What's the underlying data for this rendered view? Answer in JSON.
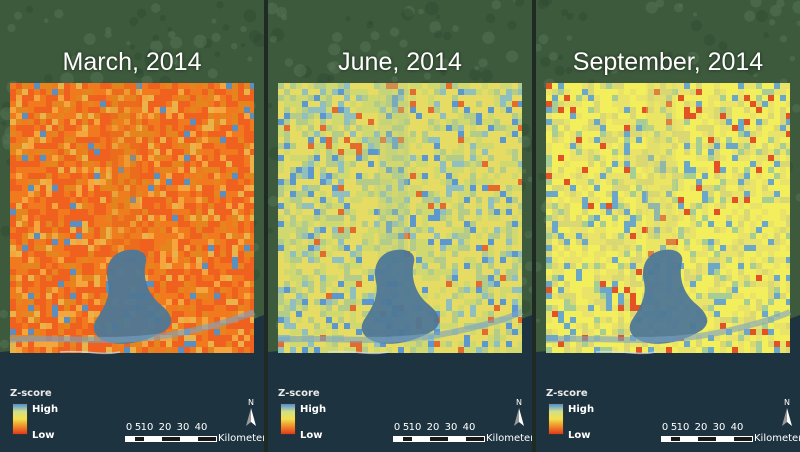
{
  "panels": [
    {
      "title": "March, 2014",
      "dominant": "orange",
      "palette": [
        "#f0601e",
        "#f27a1e",
        "#e4851e",
        "#f5a53c",
        "#eab34a",
        "#5a8fc1"
      ]
    },
    {
      "title": "June, 2014",
      "dominant": "yellow-blue",
      "palette": [
        "#e7dc63",
        "#cfd96f",
        "#b3cc8a",
        "#8fbfbf",
        "#5c98cf",
        "#e36b2e"
      ]
    },
    {
      "title": "September, 2014",
      "dominant": "yellow",
      "palette": [
        "#f3ee5c",
        "#e9e36a",
        "#d9d873",
        "#a6cd93",
        "#6aa7c8",
        "#e25224"
      ]
    }
  ],
  "legend": {
    "title": "Z-score",
    "high_label": "High",
    "low_label": "Low",
    "high_color": "#4e8fd8",
    "low_color": "#e23a1c"
  },
  "scale": {
    "ticks": [
      "0",
      "5",
      "10",
      "20",
      "30",
      "40"
    ],
    "unit": "Kilometers"
  },
  "north_arrow_label": "N",
  "colors": {
    "forest": "#3d5a3c",
    "sea": "#1e3340",
    "bay": "#4e7796"
  }
}
